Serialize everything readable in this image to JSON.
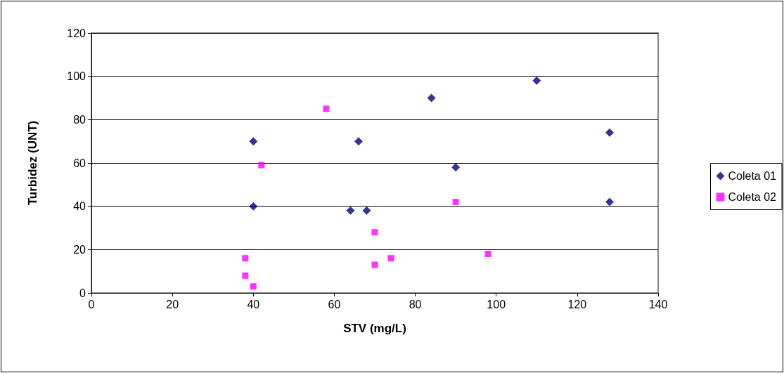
{
  "chart_data": {
    "type": "scatter",
    "xlabel": "STV (mg/L)",
    "ylabel": "Turbidez (UNT)",
    "xlim": [
      0,
      140
    ],
    "xticks": [
      0,
      20,
      40,
      60,
      80,
      100,
      120,
      140
    ],
    "ylim": [
      0,
      120
    ],
    "yticks": [
      0,
      20,
      40,
      60,
      80,
      100,
      120
    ],
    "grid": "y",
    "legend": "right",
    "series": [
      {
        "name": "Coleta 01",
        "color": "#000080",
        "marker": "diamond",
        "x": [
          40,
          40,
          66,
          64,
          68,
          84,
          110,
          128,
          90,
          128
        ],
        "values": [
          70,
          40,
          70,
          38,
          38,
          90,
          98,
          74,
          58,
          42
        ]
      },
      {
        "name": "Coleta 02",
        "color": "#ff00ff",
        "marker": "square",
        "x": [
          58,
          42,
          38,
          38,
          40,
          70,
          70,
          90,
          74,
          98
        ],
        "values": [
          85,
          59,
          16,
          8,
          3,
          28,
          13,
          42,
          16,
          18
        ]
      }
    ]
  }
}
